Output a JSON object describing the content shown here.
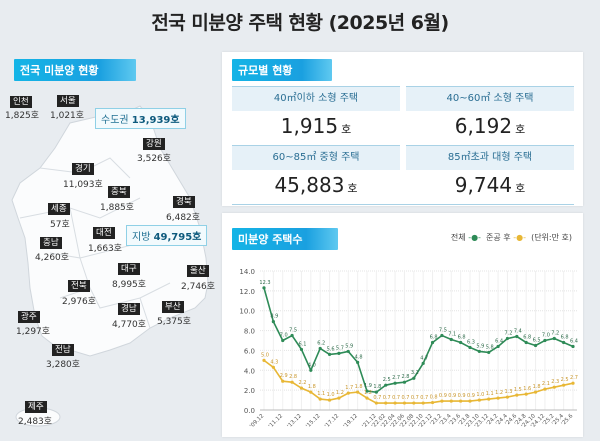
{
  "title": "전국 미분양 주택 현황  (2025년 6월)",
  "map": {
    "badge": "전국 미분양 현황",
    "capital_area": {
      "label": "수도권",
      "value": "13,939호"
    },
    "provincial": {
      "label": "지방",
      "value": "49,795호"
    },
    "regions": [
      {
        "name": "인천",
        "value": "1,825호"
      },
      {
        "name": "서울",
        "value": "1,021호"
      },
      {
        "name": "강원",
        "value": "3,526호"
      },
      {
        "name": "경기",
        "value": "11,093호"
      },
      {
        "name": "충북",
        "value": "1,885호"
      },
      {
        "name": "경북",
        "value": "6,482호"
      },
      {
        "name": "세종",
        "value": "57호"
      },
      {
        "name": "대전",
        "value": "1,663호"
      },
      {
        "name": "충남",
        "value": "4,260호"
      },
      {
        "name": "대구",
        "value": "8,995호"
      },
      {
        "name": "울산",
        "value": "2,746호"
      },
      {
        "name": "전북",
        "value": "2,976호"
      },
      {
        "name": "경남",
        "value": "4,770호"
      },
      {
        "name": "부산",
        "value": "5,375호"
      },
      {
        "name": "광주",
        "value": "1,297호"
      },
      {
        "name": "전남",
        "value": "3,280호"
      },
      {
        "name": "제주",
        "value": "2,483호"
      }
    ]
  },
  "size": {
    "badge": "규모별 현황",
    "unit": "호",
    "cells": [
      {
        "label": "40㎡이하 소형 주택",
        "value": "1,915"
      },
      {
        "label": "40~60㎡ 소형 주택",
        "value": "6,192"
      },
      {
        "label": "60~85㎡ 중형 주택",
        "value": "45,883"
      },
      {
        "label": "85㎡초과 대형 주택",
        "value": "9,744"
      }
    ]
  },
  "chart_panel": {
    "badge": "미분양 주택수",
    "legend_total": "전체",
    "legend_completed": "준공 후",
    "unit": "(단위:만 호)"
  },
  "chart_data": {
    "type": "line",
    "ylim": [
      0,
      14
    ],
    "yticks": [
      "0.0",
      "2.0",
      "4.0",
      "6.0",
      "8.0",
      "10.0",
      "12.0",
      "14.0"
    ],
    "grid": true,
    "legend": "top-right",
    "x": [
      "'09.12",
      "",
      "'11.12",
      "",
      "'13.12",
      "",
      "'15.12",
      "",
      "'17.12",
      "",
      "'19.12",
      "",
      "'21.12",
      "'22.02",
      "'22.04",
      "'22.06",
      "'22.08",
      "'22.10",
      "'22.12",
      "'23.2",
      "'23.4",
      "'23.6",
      "'23.8",
      "'23.10",
      "'23.12",
      "'24.2",
      "'24.4",
      "'24.6",
      "'24.8",
      "'24.10",
      "'24.12",
      "'25.2",
      "'25.4",
      "'25.6"
    ],
    "series": [
      {
        "name": "전체",
        "color": "#2e8b57",
        "values": [
          12.3,
          8.9,
          7.0,
          7.5,
          6.1,
          4.0,
          6.2,
          5.6,
          5.7,
          5.9,
          4.8,
          1.9,
          1.8,
          2.5,
          2.7,
          2.8,
          3.2,
          4.7,
          6.8,
          7.5,
          7.1,
          6.8,
          6.3,
          5.9,
          5.8,
          6.4,
          7.2,
          7.4,
          6.8,
          6.5,
          7.0,
          7.2,
          6.8,
          6.4
        ]
      },
      {
        "name": "준공 후",
        "color": "#e8b735",
        "values": [
          5.0,
          4.3,
          2.9,
          2.8,
          2.2,
          1.8,
          1.1,
          1.0,
          1.2,
          1.7,
          1.8,
          1.2,
          0.7,
          0.7,
          0.7,
          0.7,
          0.7,
          0.7,
          0.75,
          0.9,
          0.9,
          0.9,
          0.9,
          1.0,
          1.1,
          1.2,
          1.3,
          1.5,
          1.6,
          1.8,
          2.1,
          2.3,
          2.5,
          2.7
        ]
      }
    ]
  }
}
